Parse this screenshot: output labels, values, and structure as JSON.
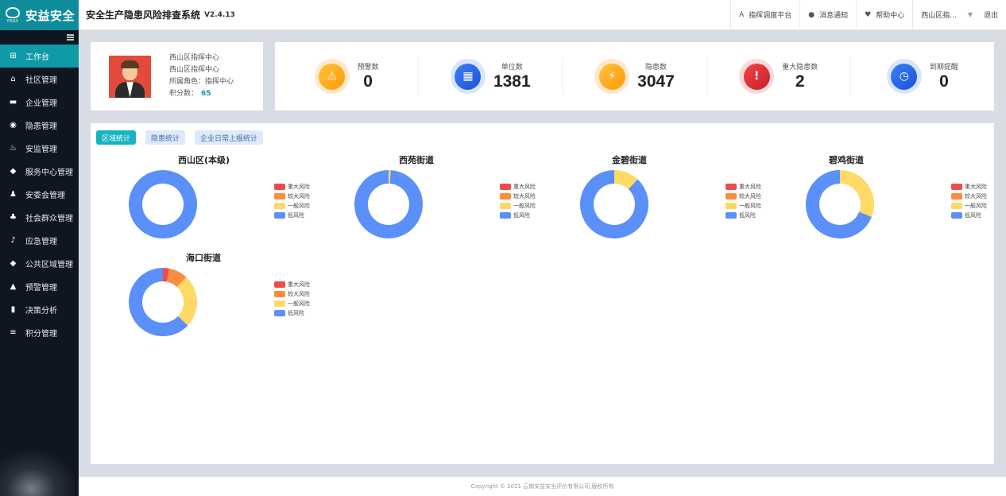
{
  "brand": {
    "logo_text": "安益安全",
    "logo_sub": "YNAV"
  },
  "header": {
    "title": "安全生产隐患风险排查系统",
    "version": "V2.4.13",
    "buttons": {
      "platform": "指挥调度平台",
      "messages": "消息通知",
      "help": "帮助中心",
      "region": "西山区指...",
      "logout": "退出"
    }
  },
  "sidebar": {
    "items": [
      {
        "label": "工作台",
        "icon": "windows-icon"
      },
      {
        "label": "社区管理",
        "icon": "home-icon"
      },
      {
        "label": "企业管理",
        "icon": "briefcase-icon"
      },
      {
        "label": "隐患管理",
        "icon": "broadcast-icon"
      },
      {
        "label": "安监管理",
        "icon": "flame-icon"
      },
      {
        "label": "服务中心管理",
        "icon": "cube-icon"
      },
      {
        "label": "安委会管理",
        "icon": "user-icon"
      },
      {
        "label": "社会群众管理",
        "icon": "users-icon"
      },
      {
        "label": "应急管理",
        "icon": "bell-icon"
      },
      {
        "label": "公共区域管理",
        "icon": "cube-icon"
      },
      {
        "label": "预警管理",
        "icon": "warning-icon"
      },
      {
        "label": "决策分析",
        "icon": "bar-chart-icon"
      },
      {
        "label": "积分管理",
        "icon": "database-icon"
      }
    ]
  },
  "profile": {
    "line1": "西山区指挥中心",
    "line2": "西山区指挥中心",
    "role_label": "所属角色：",
    "role": "指挥中心",
    "points_label": "积分数：",
    "points": "65"
  },
  "stats": [
    {
      "label": "预警数",
      "value": "0",
      "color": "orange",
      "icon": "alarm-icon",
      "glyph": "⚠"
    },
    {
      "label": "单位数",
      "value": "1381",
      "color": "blue",
      "icon": "building-icon",
      "glyph": "▦"
    },
    {
      "label": "隐患数",
      "value": "3047",
      "color": "orange",
      "icon": "shield-bolt-icon",
      "glyph": "⚡"
    },
    {
      "label": "重大隐患数",
      "value": "2",
      "color": "red",
      "icon": "alert-shield-icon",
      "glyph": "!"
    },
    {
      "label": "到期提醒",
      "value": "0",
      "color": "blue",
      "icon": "clock-document-icon",
      "glyph": "◷"
    }
  ],
  "tabs": [
    "区域统计",
    "隐患统计",
    "企业日常上报统计"
  ],
  "legend_labels": [
    "重大风险",
    "较大风险",
    "一般风险",
    "低风险"
  ],
  "colors": {
    "major": "#ee4b4b",
    "larger": "#fb8b3f",
    "general": "#fed966",
    "low": "#5b8ff9",
    "accent": "#0f9aa8"
  },
  "chart_data": [
    {
      "type": "pie",
      "title": "西山区(本级)",
      "categories": [
        "重大风险",
        "较大风险",
        "一般风险",
        "低风险"
      ],
      "values": [
        0,
        0,
        0,
        100
      ]
    },
    {
      "type": "pie",
      "title": "西苑街道",
      "categories": [
        "重大风险",
        "较大风险",
        "一般风险",
        "低风险"
      ],
      "values": [
        0,
        0,
        1,
        99
      ]
    },
    {
      "type": "pie",
      "title": "金碧街道",
      "categories": [
        "重大风险",
        "较大风险",
        "一般风险",
        "低风险"
      ],
      "values": [
        0,
        0,
        12,
        88
      ]
    },
    {
      "type": "pie",
      "title": "碧鸡街道",
      "categories": [
        "重大风险",
        "较大风险",
        "一般风险",
        "低风险"
      ],
      "values": [
        0,
        0,
        31,
        69
      ]
    },
    {
      "type": "pie",
      "title": "海口街道",
      "categories": [
        "重大风险",
        "较大风险",
        "一般风险",
        "低风险"
      ],
      "values": [
        3,
        9,
        25,
        63
      ]
    }
  ],
  "footer": "Copyright © 2021 云南安益安全评价有限公司,版权所有"
}
